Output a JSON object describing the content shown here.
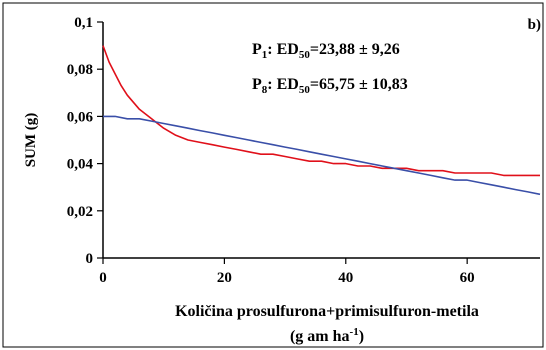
{
  "chart_data": {
    "type": "line",
    "panel_label": "b)",
    "xlabel": "Količina prosulfurona+primisulfuron-metila",
    "xunit": {
      "before": "(g am ha",
      "sup": "-1",
      "after": ")"
    },
    "ylabel": "SUM (g)",
    "xlim": [
      0,
      72
    ],
    "ylim": [
      0,
      0.1
    ],
    "x_ticks": [
      0,
      20,
      40,
      60
    ],
    "x_tick_labels": [
      "0",
      "20",
      "40",
      "60"
    ],
    "y_ticks": [
      0,
      0.02,
      0.04,
      0.06,
      0.08,
      0.1
    ],
    "y_tick_labels": [
      "0",
      "0,02",
      "0,04",
      "0,06",
      "0,08",
      "0,1"
    ],
    "grid": false,
    "annotations": [
      {
        "prefix": "P",
        "sub": "1",
        "mid": ": ED",
        "sub2": "50",
        "value": "=23,88 ± 9,26"
      },
      {
        "prefix": "P",
        "sub": "8",
        "mid": ": ED",
        "sub2": "50",
        "value": "=65,75 ± 10,83"
      }
    ],
    "series": [
      {
        "color": "#e0101a",
        "x": [
          0,
          1,
          2,
          3,
          4,
          5,
          6,
          7,
          8,
          9,
          10,
          12,
          14,
          16,
          18,
          20,
          22,
          24,
          26,
          28,
          30,
          32,
          34,
          36,
          38,
          40,
          42,
          44,
          46,
          48,
          50,
          52,
          54,
          56,
          58,
          60,
          62,
          64,
          66,
          68,
          70,
          72
        ],
        "y": [
          0.09,
          0.083,
          0.078,
          0.073,
          0.069,
          0.066,
          0.063,
          0.061,
          0.059,
          0.057,
          0.055,
          0.052,
          0.05,
          0.049,
          0.048,
          0.047,
          0.046,
          0.045,
          0.044,
          0.044,
          0.043,
          0.042,
          0.041,
          0.041,
          0.04,
          0.04,
          0.039,
          0.039,
          0.038,
          0.038,
          0.038,
          0.037,
          0.037,
          0.037,
          0.036,
          0.036,
          0.036,
          0.036,
          0.035,
          0.035,
          0.035,
          0.035
        ]
      },
      {
        "color": "#3a4fa8",
        "x": [
          0,
          2,
          4,
          6,
          8,
          10,
          12,
          14,
          16,
          18,
          20,
          22,
          24,
          26,
          28,
          30,
          32,
          34,
          36,
          38,
          40,
          42,
          44,
          46,
          48,
          50,
          52,
          54,
          56,
          58,
          60,
          62,
          64,
          66,
          68,
          70,
          72
        ],
        "y": [
          0.06,
          0.06,
          0.059,
          0.059,
          0.058,
          0.057,
          0.056,
          0.055,
          0.054,
          0.053,
          0.052,
          0.051,
          0.05,
          0.049,
          0.048,
          0.047,
          0.046,
          0.045,
          0.044,
          0.043,
          0.042,
          0.041,
          0.04,
          0.039,
          0.038,
          0.037,
          0.036,
          0.035,
          0.034,
          0.033,
          0.033,
          0.032,
          0.031,
          0.03,
          0.029,
          0.028,
          0.027
        ]
      }
    ]
  }
}
